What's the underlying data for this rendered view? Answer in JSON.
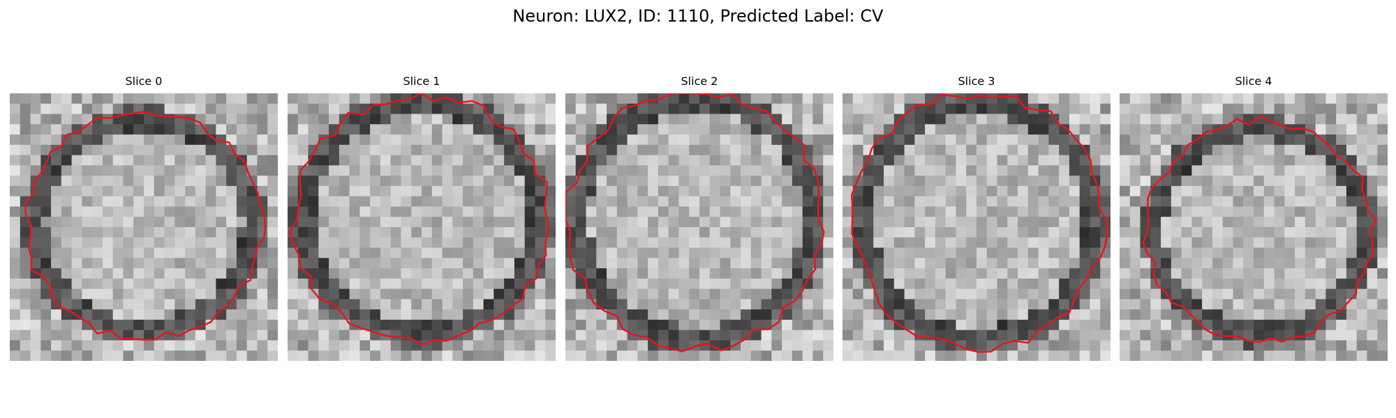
{
  "figure": {
    "title": "Neuron: LUX2, ID: 1110, Predicted Label: CV"
  },
  "slices": [
    {
      "title": "Slice 0",
      "contour_color": "#e8151b"
    },
    {
      "title": "Slice 1",
      "contour_color": "#e8151b"
    },
    {
      "title": "Slice 2",
      "contour_color": "#e8151b"
    },
    {
      "title": "Slice 3",
      "contour_color": "#e8151b"
    },
    {
      "title": "Slice 4",
      "contour_color": "#e8151b"
    }
  ]
}
